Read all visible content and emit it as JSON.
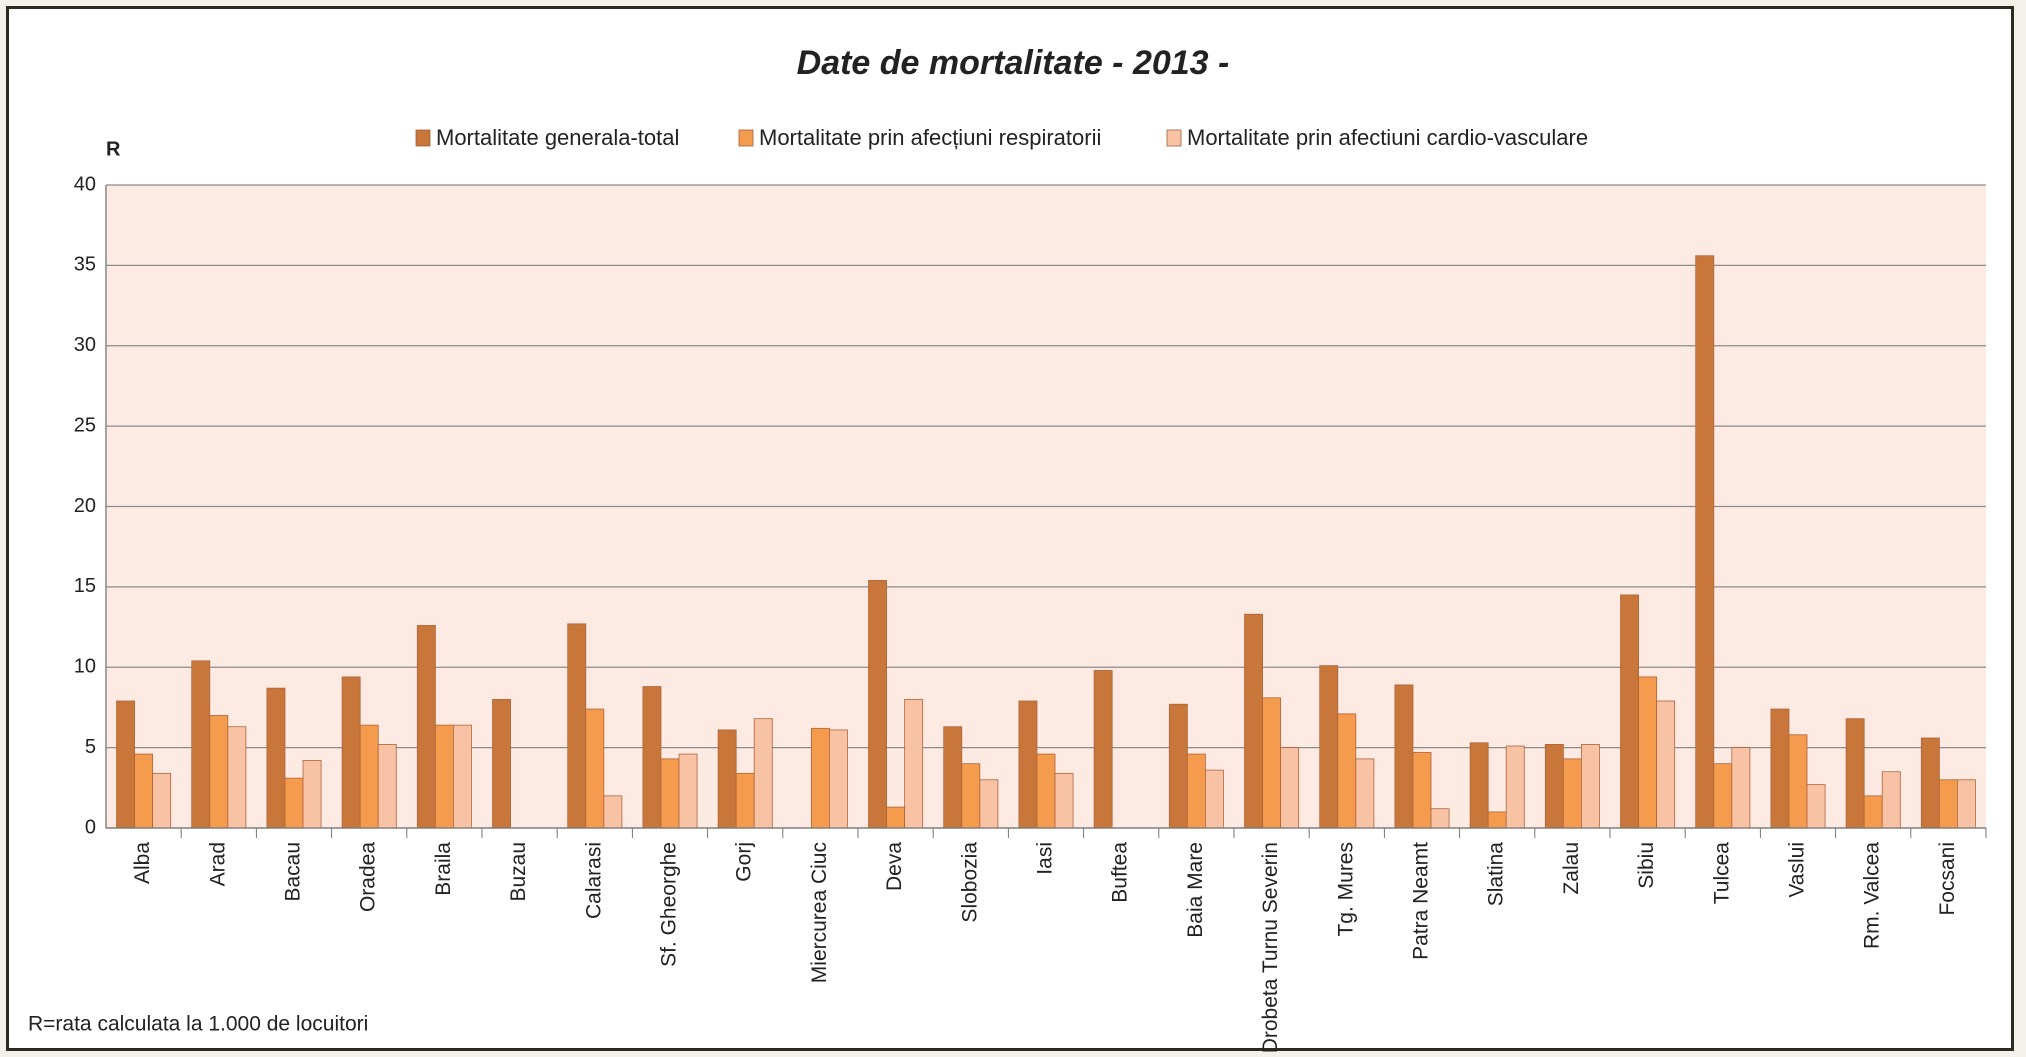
{
  "chart_data": {
    "type": "bar",
    "title": "Date de  mortalitate    - 2013 -",
    "y_label": "R",
    "note": "R=rata calculata la 1.000 de locuitori",
    "categories": [
      "Alba",
      "Arad",
      "Bacau",
      "Oradea",
      "Braila",
      "Buzau",
      "Calarasi",
      "Sf. Gheorghe",
      "Gorj",
      "Miercurea Ciuc",
      "Deva",
      "Slobozia",
      "Iasi",
      "Buftea",
      "Baia Mare",
      "Drobeta Turnu Severin",
      "Tg. Mures",
      "Patra Neamt",
      "Slatina",
      "Zalau",
      "Sibiu",
      "Tulcea",
      "Vaslui",
      "Rm. Valcea",
      "Focsani"
    ],
    "series": [
      {
        "name": "Mortalitate generala-total",
        "color": "#c8763a",
        "values": [
          7.9,
          10.4,
          8.7,
          9.4,
          12.6,
          8.0,
          12.7,
          8.8,
          6.1,
          null,
          15.4,
          6.3,
          7.9,
          9.8,
          7.7,
          13.3,
          10.1,
          8.9,
          5.3,
          5.2,
          14.5,
          35.6,
          7.4,
          6.8,
          5.6
        ]
      },
      {
        "name": "Mortalitate prin afecțiuni respiratorii",
        "color": "#f59b4e",
        "values": [
          4.6,
          7.0,
          3.1,
          6.4,
          6.4,
          null,
          7.4,
          4.3,
          3.4,
          6.2,
          1.3,
          4.0,
          4.6,
          null,
          4.6,
          8.1,
          7.1,
          4.7,
          1.0,
          4.3,
          9.4,
          4.0,
          5.8,
          2.0,
          3.0
        ]
      },
      {
        "name": "Mortalitate prin afectiuni cardio-vasculare",
        "color": "#f8c3a4",
        "values": [
          3.4,
          6.3,
          4.2,
          5.2,
          6.4,
          null,
          2.0,
          4.6,
          6.8,
          6.1,
          8.0,
          3.0,
          3.4,
          null,
          3.6,
          5.0,
          4.3,
          1.2,
          5.1,
          5.2,
          7.9,
          5.0,
          2.7,
          3.5,
          3.0
        ]
      }
    ],
    "ylim": [
      0,
      40
    ],
    "yticks": [
      0,
      5,
      10,
      15,
      20,
      25,
      30,
      35,
      40
    ],
    "grid": true
  }
}
